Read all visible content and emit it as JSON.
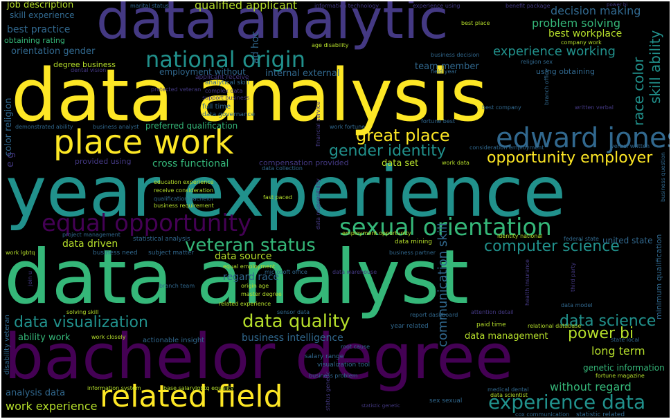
{
  "colors": {
    "background": "#000000",
    "yellow": "#fde725",
    "yellowgreen": "#b5de2b",
    "green": "#35b779",
    "teal": "#21918c",
    "blue": "#31688e",
    "indigo": "#443983",
    "purple": "#440154"
  },
  "words": {
    "data_analysis": "data analysis",
    "year_experience": "year experience",
    "data_analyst": "data analyst",
    "bachelor_degree": "bachelor degree",
    "data_analytic": "data analytic",
    "place_work": "place work",
    "related_field": "related field",
    "national_origin": "national origin",
    "sexual_orientation": "sexual orientation",
    "equal_opportunity": "equal opportunity",
    "edward_jones": "edward jones",
    "data_visualization": "data visualization",
    "data_quality": "data quality",
    "veteran_status": "veteran status",
    "experience_data": "experience data",
    "opportunity_employer": "opportunity employer",
    "gender_identity": "gender identity",
    "great_place": "great place",
    "computer_science": "computer science",
    "data_science": "data science",
    "power_bi": "power bi",
    "experience_working": "experience working",
    "communication_skill": "communication skill",
    "race_color": "race color",
    "skill_ability": "skill ability",
    "qualified_applicant": "qualified applicant",
    "job_description": "job description",
    "decision_making": "decision making",
    "problem_solving": "problem solving",
    "best_practice": "best practice",
    "best_workplace": "best workplace",
    "orientation_gender": "orientation gender",
    "work_experience": "work experience",
    "without_regard": "without regard",
    "long_term": "long term",
    "data_source": "data source",
    "regard_race": "regard race",
    "data_driven": "data driven",
    "business_intelligence": "business intelligence",
    "ability_work": "ability work",
    "analysis_data": "analysis data",
    "data_management": "data management",
    "cross_functional": "cross functional",
    "team_member": "team member",
    "data_set": "data set",
    "internal_external": "internal external",
    "skill_experience": "skill experience",
    "obtaining_rating": "obtaining rating",
    "color_religion": "color religion",
    "ad_hoc": "ad hoc",
    "preferred_qualification": "preferred qualification",
    "employment_without": "employment without",
    "degree_business": "degree business",
    "provided_using": "provided using",
    "compensation_provided": "compensation provided",
    "genetic_information": "genetic information",
    "united_state": "united state",
    "using_obtaining": "using obtaining",
    "full_time": "full time",
    "data_governance": "data governance",
    "support_business": "support business",
    "analytical_skill": "analytical skill",
    "applicant_receive": "applicant receive",
    "education_experience": "education experience",
    "receive_consideration": "receive consideration",
    "qualification_bachelor": "qualification bachelor",
    "business_requirement": "business requirement",
    "consideration_employment": "consideration employment",
    "verbal_written": "verbal written",
    "written_verbal": "written verbal",
    "best_company": "best company",
    "work_fortune": "work fortune",
    "fortune_best": "fortune best",
    "data_collection": "data collection",
    "work_data": "work data",
    "employment_opportunity": "employment opportunity",
    "business_partner": "business partner",
    "data_mining": "data mining",
    "subject_matter": "subject matter",
    "business_need": "business need",
    "machine_learning": "machine learning",
    "project_management": "project management",
    "statistical_analysis": "statistical analysis",
    "equal_employment": "equal employment",
    "origin_age": "origin age",
    "master_degree": "master degree",
    "related_experience": "related experience",
    "solving_skill": "solving skill",
    "work_closely": "work closely",
    "actionable_insight": "actionable insight",
    "salary_range": "salary range",
    "visualization_tool": "visualization tool",
    "business_problem": "business problem",
    "report_dashboard": "report dashboard",
    "year_related": "year related",
    "paid_time": "paid time",
    "attention_detail": "attention detail",
    "relational_database": "relational database",
    "data_model": "data model",
    "fortune_magazine": "fortune magazine",
    "information_system": "information system",
    "base_salary": "base salary",
    "sex_sexual": "sex sexual",
    "data_scientist": "data scientist",
    "medical_dental": "medical dental",
    "statistic_related": "statistic related",
    "cox_communication": "cox communication",
    "minimum_qualification": "minimum qualification",
    "health_insurance": "health insurance",
    "business_question": "business question",
    "business_analyst": "business analyst",
    "dental_vision": "dental vision",
    "information_technology": "information technology",
    "experience_using": "experience using",
    "marital_status": "marital status",
    "benefit_package": "benefit package",
    "best_place": "best place",
    "company_work": "company work",
    "age_disability": "age disability",
    "business_decision": "business decision",
    "field_year": "field year",
    "religion_sex": "religion sex",
    "protected_veteran": "protected veteran",
    "complex_data": "complex data",
    "demonstrated_ability": "demonstrated ability",
    "fast_paced": "fast paced",
    "data_warehouse": "data warehouse",
    "identity_national": "identity national",
    "federal_state": "federal state",
    "disability_veteran": "disability veteran",
    "work_lgbtq": "work lgbtq",
    "lgbtq_equality": "lgbtq equality",
    "sensor_data": "sensor data",
    "root_cause": "root cause",
    "state_local": "state local",
    "statistic_genetic": "statistic genetic",
    "status_genetic": "status genetic",
    "e_g": "e g",
    "join_u": "join u",
    "microsoft_office": "microsoft office",
    "branch_team": "branch team",
    "financial_service": "financial service",
    "data_responsibility": "data responsibility",
    "power_bi_small": "power bi",
    "branch_office": "branch office",
    "third_party": "third party"
  }
}
